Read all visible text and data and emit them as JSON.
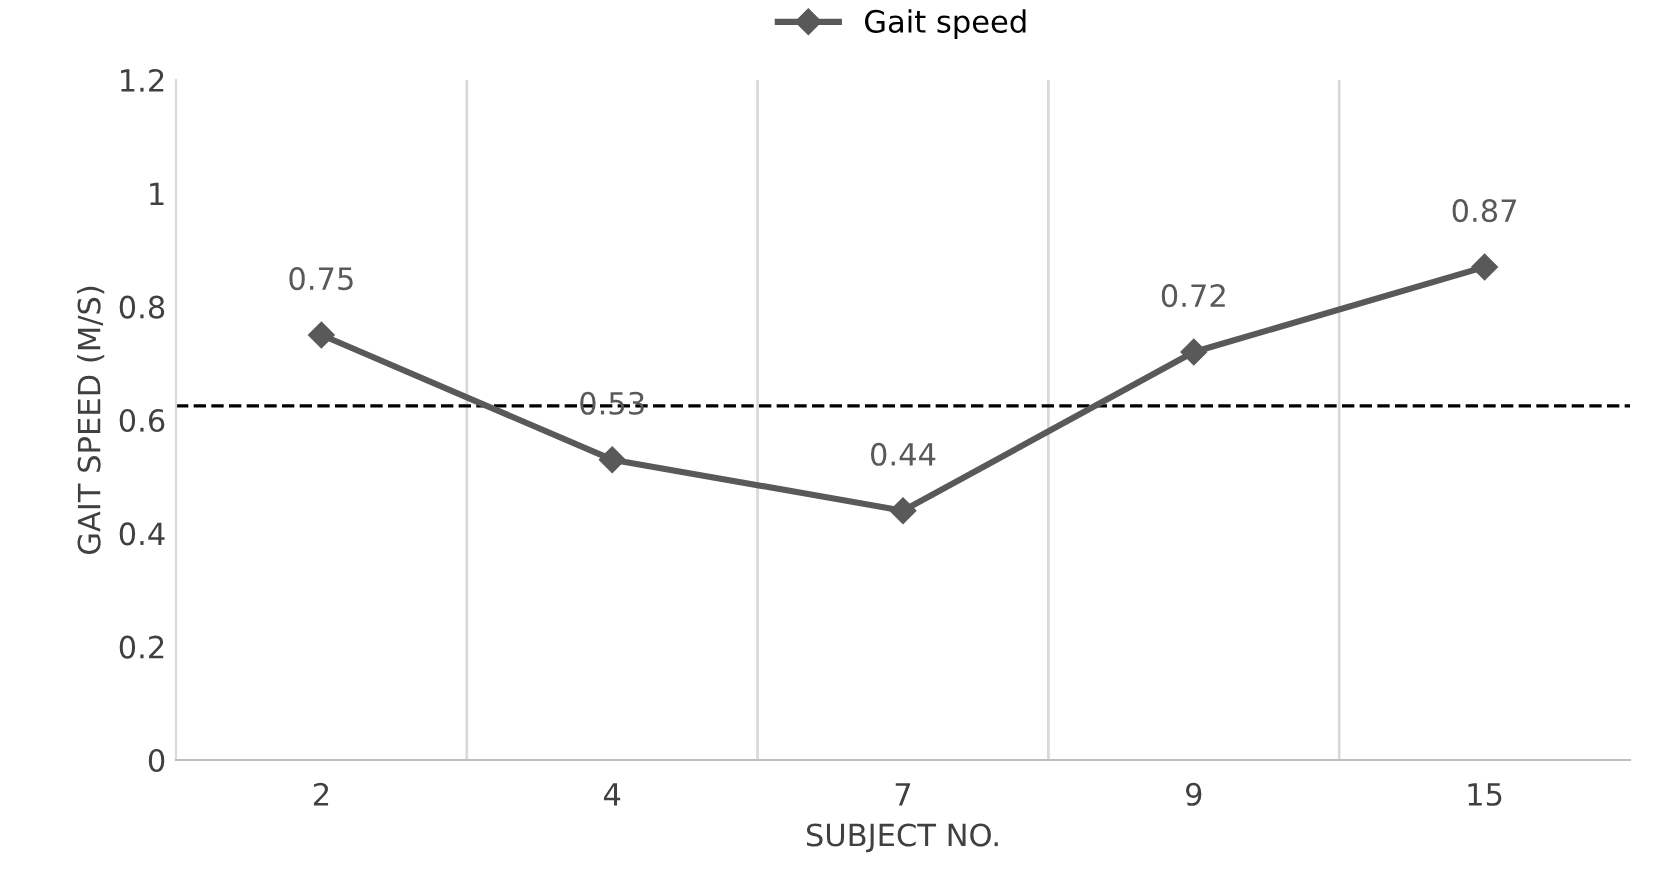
{
  "chart_data": {
    "type": "line",
    "xlabel": "SUBJECT NO.",
    "ylabel": "GAIT SPEED (M/S)",
    "categories": [
      "2",
      "4",
      "7",
      "9",
      "15"
    ],
    "series": [
      {
        "name": "Gait speed",
        "color": "#595959",
        "values": [
          0.75,
          0.53,
          0.44,
          0.72,
          0.87
        ]
      }
    ],
    "ylim": [
      0,
      1.2
    ],
    "yticks": [
      0,
      0.2,
      0.4,
      0.6,
      0.8,
      1,
      1.2
    ],
    "ref_lines": [
      {
        "axis": "y",
        "value": 0.625,
        "color": "#000000",
        "line_style": "dashed"
      }
    ],
    "data_labels": true,
    "grid": "x",
    "legend": "top",
    "marker": "diamond",
    "line_style": "solid"
  }
}
